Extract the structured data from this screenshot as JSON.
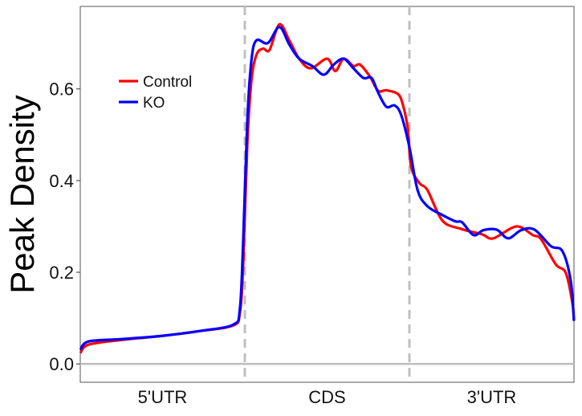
{
  "chart_data": {
    "type": "line",
    "title": "",
    "xlabel": "",
    "ylabel": "Peak Density",
    "xlim": [
      0,
      3
    ],
    "ylim": [
      -0.04,
      0.78
    ],
    "x_categories": [
      "5'UTR",
      "CDS",
      "3'UTR"
    ],
    "region_boundaries": [
      1,
      2
    ],
    "yticks": [
      0.0,
      0.2,
      0.4,
      0.6
    ],
    "ytick_labels": [
      "0.0",
      "0.2",
      "0.4",
      "0.6"
    ],
    "legend_position": "top-left",
    "grid": false,
    "series": [
      {
        "name": "Control",
        "color": "#ff0000",
        "x": [
          0,
          0.05,
          0.24,
          0.49,
          0.73,
          0.93,
          0.97,
          0.99,
          1.015,
          1.04,
          1.07,
          1.11,
          1.15,
          1.21,
          1.27,
          1.33,
          1.4,
          1.5,
          1.55,
          1.6,
          1.66,
          1.7,
          1.76,
          1.81,
          1.86,
          1.93,
          1.96,
          1.99,
          2.01,
          2.06,
          2.11,
          2.2,
          2.31,
          2.44,
          2.51,
          2.65,
          2.75,
          2.8,
          2.89,
          2.95,
          2.99,
          3.0
        ],
        "y": [
          0.024,
          0.042,
          0.052,
          0.061,
          0.072,
          0.084,
          0.112,
          0.217,
          0.479,
          0.618,
          0.674,
          0.688,
          0.685,
          0.741,
          0.706,
          0.666,
          0.645,
          0.666,
          0.639,
          0.666,
          0.65,
          0.653,
          0.627,
          0.596,
          0.597,
          0.589,
          0.566,
          0.514,
          0.431,
          0.395,
          0.379,
          0.313,
          0.295,
          0.283,
          0.274,
          0.3,
          0.281,
          0.272,
          0.217,
          0.199,
          0.134,
          0.094
        ]
      },
      {
        "name": "KO",
        "color": "#0000ff",
        "x": [
          0,
          0.05,
          0.24,
          0.49,
          0.73,
          0.93,
          0.97,
          0.99,
          1.015,
          1.04,
          1.07,
          1.14,
          1.21,
          1.27,
          1.33,
          1.41,
          1.48,
          1.54,
          1.6,
          1.66,
          1.72,
          1.77,
          1.81,
          1.86,
          1.91,
          1.95,
          2.0,
          2.05,
          2.11,
          2.2,
          2.28,
          2.32,
          2.39,
          2.45,
          2.53,
          2.6,
          2.68,
          2.76,
          2.86,
          2.93,
          2.98,
          3.0
        ],
        "y": [
          0.031,
          0.049,
          0.054,
          0.061,
          0.072,
          0.086,
          0.121,
          0.269,
          0.531,
          0.662,
          0.706,
          0.7,
          0.735,
          0.697,
          0.666,
          0.65,
          0.631,
          0.653,
          0.666,
          0.645,
          0.624,
          0.624,
          0.592,
          0.561,
          0.564,
          0.543,
          0.473,
          0.379,
          0.344,
          0.325,
          0.311,
          0.309,
          0.281,
          0.292,
          0.293,
          0.274,
          0.292,
          0.293,
          0.257,
          0.246,
          0.182,
          0.094
        ]
      }
    ]
  }
}
